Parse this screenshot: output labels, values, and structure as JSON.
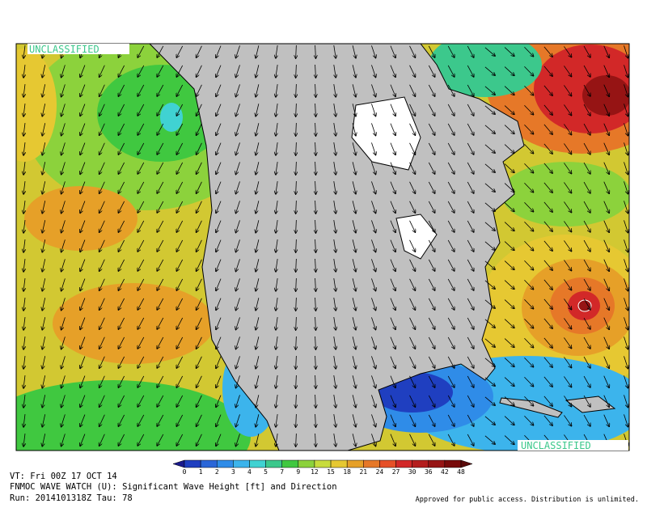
{
  "map": {
    "stamp_top": "UNCLASSIFIED",
    "stamp_bottom": "UNCLASSIFIED",
    "legend": {
      "levels": [
        0,
        1,
        2,
        3,
        4,
        5,
        7,
        9,
        12,
        15,
        18,
        21,
        24,
        27,
        30,
        36,
        42,
        48
      ],
      "colors": [
        "#1a1a8c",
        "#1f3fc0",
        "#2a66d8",
        "#2f8ce8",
        "#3cb4ec",
        "#40d2d2",
        "#3cc88c",
        "#40c840",
        "#8cd23c",
        "#c8dc3c",
        "#e6c832",
        "#e6a028",
        "#e67828",
        "#e65028",
        "#d22828",
        "#b41e1e",
        "#961414",
        "#780a0a",
        "#5a0a0a"
      ]
    },
    "caption": {
      "line1": "VT: Fri 00Z 17 OCT 14",
      "line2": "FNMOC WAVE WATCH (U): Significant Wave Height [ft] and Direction",
      "line3": "Run: 2014101318Z Tau: 78",
      "notice": "Approved for public access. Distribution is unlimited."
    }
  }
}
